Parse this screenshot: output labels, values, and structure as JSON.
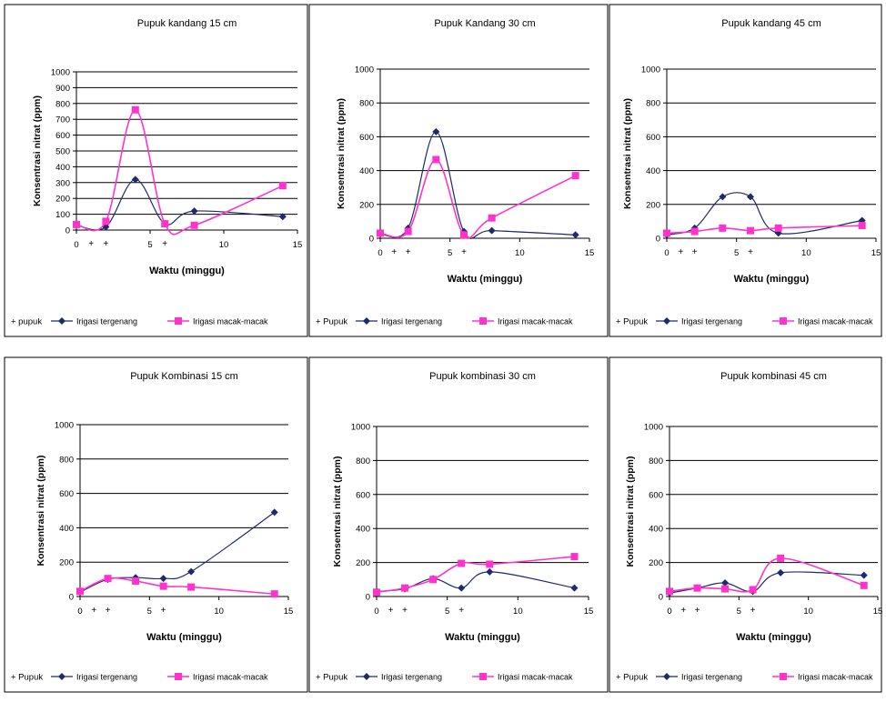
{
  "colors": {
    "irigasi_tergenang": "#1f2a6b",
    "irigasi_macak_macak": "#ff33cc",
    "gridline": "#000000",
    "panel_border": "#000000"
  },
  "chart_data": [
    {
      "type": "line",
      "title": "Pupuk kandang 15 cm",
      "xlabel": "Waktu (minggu)",
      "ylabel": "Konsentrasi nitrat (ppm)",
      "xlim": [
        0,
        15
      ],
      "ylim": [
        0,
        1000
      ],
      "yticks": [
        0,
        100,
        200,
        300,
        400,
        500,
        600,
        700,
        800,
        900,
        1000
      ],
      "xticks": [
        0,
        5,
        10,
        15
      ],
      "pupuk_weeks": [
        1,
        2,
        6
      ],
      "legend_marker_label": "+ pupuk",
      "series": [
        {
          "name": "Irigasi tergenang",
          "marker": "diamond",
          "x": [
            0,
            2,
            4,
            6,
            8,
            14
          ],
          "y": [
            30,
            20,
            320,
            40,
            120,
            85
          ]
        },
        {
          "name": "Irigasi macak-macak",
          "marker": "square",
          "x": [
            0,
            2,
            4,
            6,
            8,
            14
          ],
          "y": [
            35,
            55,
            760,
            40,
            30,
            280
          ]
        }
      ]
    },
    {
      "type": "line",
      "title": "Pupuk Kandang 30 cm",
      "xlabel": "Waktu (minggu)",
      "ylabel": "Konsentrasi nitrat (ppm)",
      "xlim": [
        0,
        15
      ],
      "ylim": [
        0,
        1000
      ],
      "yticks": [
        0,
        200,
        400,
        600,
        800,
        1000
      ],
      "xticks": [
        0,
        5,
        10,
        15
      ],
      "pupuk_weeks": [
        1,
        2,
        6
      ],
      "legend_marker_label": "+ Pupuk",
      "series": [
        {
          "name": "Irigasi tergenang",
          "marker": "diamond",
          "x": [
            0,
            2,
            4,
            6,
            8,
            14
          ],
          "y": [
            25,
            60,
            630,
            40,
            45,
            20
          ]
        },
        {
          "name": "Irigasi macak-macak",
          "marker": "square",
          "x": [
            0,
            2,
            4,
            6,
            8,
            14
          ],
          "y": [
            30,
            40,
            465,
            20,
            120,
            370
          ]
        }
      ]
    },
    {
      "type": "line",
      "title": "Pupuk kandang 45 cm",
      "xlabel": "Waktu (minggu)",
      "ylabel": "Konsentrasi nitrat (ppm)",
      "xlim": [
        0,
        15
      ],
      "ylim": [
        0,
        1000
      ],
      "yticks": [
        0,
        200,
        400,
        600,
        800,
        1000
      ],
      "xticks": [
        0,
        5,
        10,
        15
      ],
      "pupuk_weeks": [
        1,
        2,
        6
      ],
      "legend_marker_label": "+ Pupuk",
      "series": [
        {
          "name": "Irigasi tergenang",
          "marker": "diamond",
          "x": [
            0,
            2,
            4,
            6,
            8,
            14
          ],
          "y": [
            20,
            60,
            245,
            245,
            30,
            105
          ]
        },
        {
          "name": "Irigasi macak-macak",
          "marker": "square",
          "x": [
            0,
            2,
            4,
            6,
            8,
            14
          ],
          "y": [
            30,
            40,
            60,
            45,
            60,
            75
          ]
        }
      ]
    },
    {
      "type": "line",
      "title": "Pupuk Kombinasi 15 cm",
      "xlabel": "Waktu (minggu)",
      "ylabel": "Konsentrasi nitrat (ppm)",
      "xlim": [
        0,
        15
      ],
      "ylim": [
        0,
        1000
      ],
      "yticks": [
        0,
        200,
        400,
        600,
        800,
        1000
      ],
      "xticks": [
        0,
        5,
        10,
        15
      ],
      "pupuk_weeks": [
        1,
        2,
        6
      ],
      "legend_marker_label": "+ Pupuk",
      "series": [
        {
          "name": "Irigasi tergenang",
          "marker": "diamond",
          "x": [
            0,
            2,
            4,
            6,
            8,
            14
          ],
          "y": [
            25,
            100,
            110,
            105,
            145,
            490
          ]
        },
        {
          "name": "Irigasi macak-macak",
          "marker": "square",
          "x": [
            0,
            2,
            4,
            6,
            8,
            14
          ],
          "y": [
            30,
            105,
            90,
            60,
            55,
            15
          ]
        }
      ]
    },
    {
      "type": "line",
      "title": "Pupuk kombinasi 30 cm",
      "xlabel": "Waktu (minggu)",
      "ylabel": "Konsentrasi nitrat (ppm)",
      "xlim": [
        0,
        15
      ],
      "ylim": [
        0,
        1000
      ],
      "yticks": [
        0,
        200,
        400,
        600,
        800,
        1000
      ],
      "xticks": [
        0,
        5,
        10,
        15
      ],
      "pupuk_weeks": [
        1,
        2,
        6
      ],
      "legend_marker_label": "+ Pupuk",
      "series": [
        {
          "name": "Irigasi tergenang",
          "marker": "diamond",
          "x": [
            0,
            2,
            4,
            6,
            8,
            14
          ],
          "y": [
            30,
            45,
            105,
            50,
            145,
            50
          ]
        },
        {
          "name": "Irigasi macak-macak",
          "marker": "square",
          "x": [
            0,
            2,
            4,
            6,
            8,
            14
          ],
          "y": [
            25,
            50,
            100,
            195,
            190,
            235
          ]
        }
      ]
    },
    {
      "type": "line",
      "title": "Pupuk kombinasi 45 cm",
      "xlabel": "Waktu (minggu)",
      "ylabel": "Konsentrasi nitrat (ppm)",
      "xlim": [
        0,
        15
      ],
      "ylim": [
        0,
        1000
      ],
      "yticks": [
        0,
        200,
        400,
        600,
        800,
        1000
      ],
      "xticks": [
        0,
        5,
        10,
        15
      ],
      "pupuk_weeks": [
        1,
        2,
        6
      ],
      "legend_marker_label": "+ Pupuk",
      "series": [
        {
          "name": "Irigasi tergenang",
          "marker": "diamond",
          "x": [
            0,
            2,
            4,
            6,
            8,
            14
          ],
          "y": [
            20,
            50,
            80,
            30,
            140,
            125
          ]
        },
        {
          "name": "Irigasi macak-macak",
          "marker": "square",
          "x": [
            0,
            2,
            4,
            6,
            8,
            14
          ],
          "y": [
            30,
            50,
            45,
            40,
            225,
            65
          ]
        }
      ]
    }
  ]
}
